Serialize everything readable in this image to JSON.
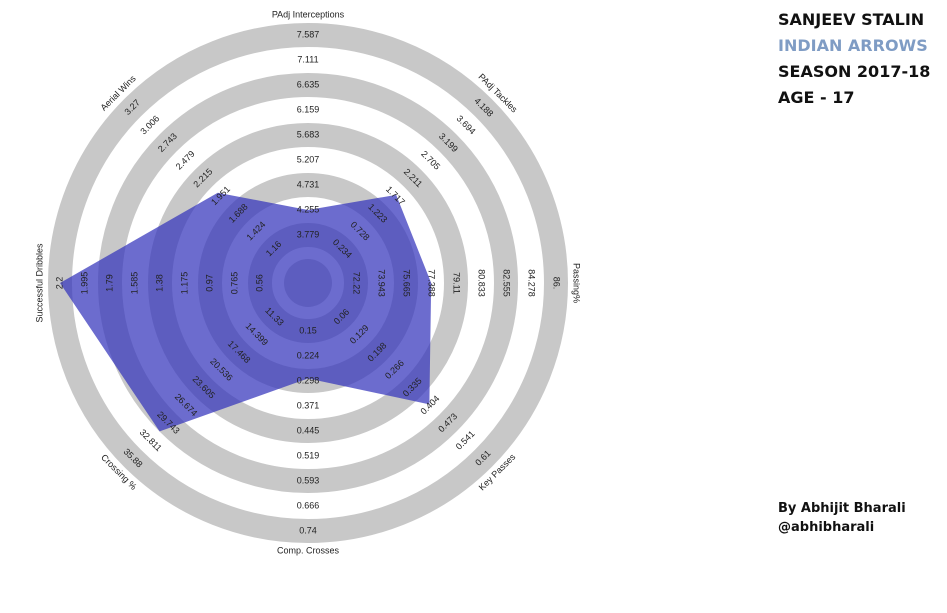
{
  "header": {
    "name": "SANJEEV STALIN",
    "team": "INDIAN ARROWS",
    "season": "SEASON 2017-18",
    "age": "AGE - 17"
  },
  "credit": {
    "author": "By Abhijit Bharali",
    "handle": "@abhibharali"
  },
  "chart_data": {
    "type": "radar",
    "axes": [
      {
        "name": "PAdj Interceptions",
        "lim": [
          3.779,
          7.587
        ],
        "ticks": [
          3.779,
          4.255,
          4.731,
          5.207,
          5.683,
          6.159,
          6.635,
          7.111,
          7.587
        ]
      },
      {
        "name": "PAdj Tackles",
        "lim": [
          0.234,
          4.188
        ],
        "ticks": [
          0.234,
          0.728,
          1.223,
          1.717,
          2.211,
          2.705,
          3.199,
          3.694,
          4.188
        ]
      },
      {
        "name": "Passing%",
        "lim": [
          72.22,
          86
        ],
        "ticks": [
          72.22,
          73.943,
          75.665,
          77.388,
          79.11,
          80.833,
          82.555,
          84.278,
          {
            "value": 86,
            "label": "86."
          }
        ]
      },
      {
        "name": "Key Passes",
        "lim": [
          0.06,
          0.61
        ],
        "ticks": [
          0.06,
          0.129,
          0.198,
          0.266,
          0.335,
          0.404,
          0.473,
          0.541,
          0.61
        ]
      },
      {
        "name": "Comp. Crosses",
        "lim": [
          0.15,
          0.74
        ],
        "ticks": [
          0.15,
          0.224,
          0.298,
          0.371,
          0.445,
          0.519,
          0.593,
          0.666,
          0.74
        ]
      },
      {
        "name": "Crossing %",
        "lim": [
          11.33,
          35.88
        ],
        "ticks": [
          11.33,
          14.399,
          17.468,
          20.536,
          23.605,
          26.674,
          29.743,
          32.811,
          35.88
        ]
      },
      {
        "name": "Successful Dribbles",
        "lim": [
          0.56,
          2.2
        ],
        "ticks": [
          0.56,
          0.765,
          0.97,
          1.175,
          1.38,
          1.585,
          1.79,
          1.995,
          2.2
        ]
      },
      {
        "name": "Aerial Wins",
        "lim": [
          1.16,
          3.27
        ],
        "ticks": [
          1.16,
          1.424,
          1.688,
          1.951,
          2.215,
          2.479,
          2.743,
          3.006,
          3.27
        ]
      }
    ],
    "series": [
      {
        "color": "#3333bb",
        "values": [
          4.255,
          1.75,
          77.4,
          0.4,
          0.29,
          31.2,
          2.2,
          2.0
        ]
      }
    ]
  }
}
